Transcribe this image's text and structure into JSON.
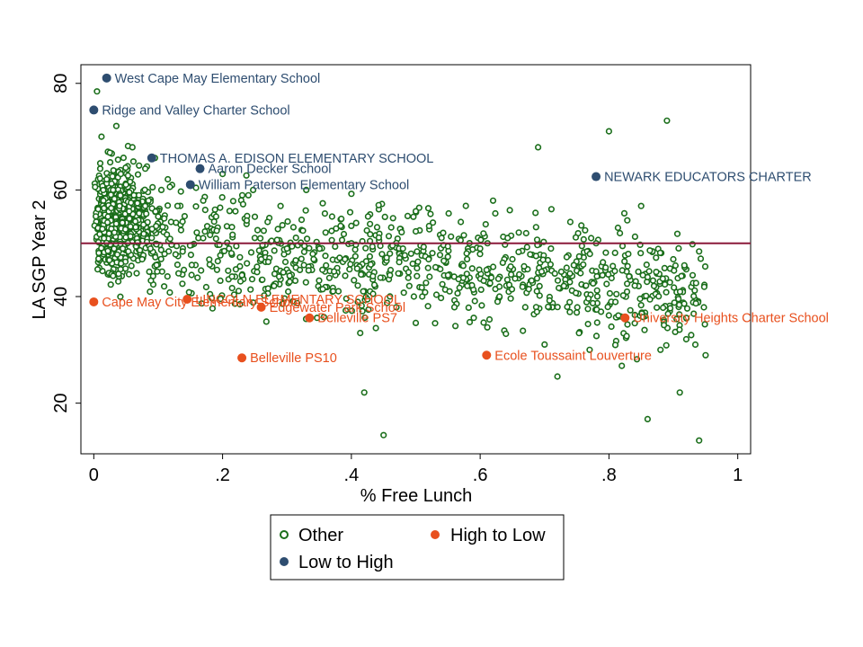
{
  "chart_data": {
    "type": "scatter",
    "title": "",
    "xlabel": "% Free Lunch",
    "ylabel": "LA SGP Year 2",
    "xlim": [
      -0.02,
      1.02
    ],
    "ylim": [
      10.5,
      83.5
    ],
    "x_ticks": [
      0,
      0.2,
      0.4,
      0.6,
      0.8,
      1
    ],
    "x_tick_labels": [
      "0",
      ".2",
      ".4",
      ".6",
      ".8",
      "1"
    ],
    "y_ticks": [
      20,
      40,
      60,
      80
    ],
    "y_tick_labels": [
      "20",
      "40",
      "60",
      "80"
    ],
    "reference_line": {
      "y": 50,
      "color": "#8b1a3a"
    },
    "grid": false,
    "legend_position": "bottom",
    "colors": {
      "other": "#1a6e1a",
      "low_to_high": "#2e4d70",
      "high_to_low": "#e8501e"
    },
    "other_sample": {
      "note_free": true,
      "x": [
        0.005,
        0.01,
        0.012,
        0.015,
        0.02,
        0.022,
        0.025,
        0.03,
        0.032,
        0.035,
        0.04,
        0.042,
        0.045,
        0.05,
        0.055,
        0.06,
        0.065,
        0.07,
        0.075,
        0.08,
        0.085,
        0.09,
        0.095,
        0.1,
        0.105,
        0.11,
        0.115,
        0.12,
        0.13,
        0.14,
        0.15,
        0.16,
        0.17,
        0.18,
        0.19,
        0.2,
        0.21,
        0.22,
        0.23,
        0.24,
        0.25,
        0.26,
        0.27,
        0.28,
        0.29,
        0.3,
        0.31,
        0.32,
        0.33,
        0.34,
        0.35,
        0.36,
        0.37,
        0.38,
        0.39,
        0.4,
        0.41,
        0.42,
        0.43,
        0.44,
        0.45,
        0.46,
        0.47,
        0.48,
        0.49,
        0.5,
        0.51,
        0.52,
        0.53,
        0.54,
        0.55,
        0.56,
        0.57,
        0.58,
        0.59,
        0.6,
        0.61,
        0.62,
        0.63,
        0.64,
        0.65,
        0.66,
        0.67,
        0.68,
        0.69,
        0.7,
        0.71,
        0.72,
        0.73,
        0.74,
        0.75,
        0.76,
        0.77,
        0.78,
        0.79,
        0.8,
        0.81,
        0.82,
        0.83,
        0.84,
        0.85,
        0.86,
        0.87,
        0.88,
        0.89,
        0.9,
        0.91,
        0.92,
        0.93,
        0.94,
        0.95
      ],
      "y": [
        78.5,
        65,
        70,
        58,
        62,
        55,
        67,
        60,
        52,
        72,
        57,
        63,
        49,
        61,
        56,
        68,
        53,
        59,
        47,
        64,
        58,
        51,
        66,
        55,
        60,
        48,
        62,
        54,
        57,
        45,
        61,
        52,
        58,
        46,
        55,
        63,
        49,
        56,
        44,
        59,
        51,
        47,
        54,
        42,
        57,
        49,
        53,
        45,
        60,
        48,
        43,
        52,
        55,
        41,
        47,
        50,
        39,
        22,
        46,
        53,
        14,
        44,
        38,
        49,
        42,
        56,
        40,
        47,
        35,
        51,
        44,
        38,
        54,
        42,
        36,
        49,
        45,
        58,
        40,
        33,
        47,
        52,
        38,
        43,
        68,
        31,
        49,
        25,
        42,
        54,
        37,
        46,
        30,
        50,
        44,
        71,
        39,
        27,
        48,
        35,
        57,
        17,
        42,
        30,
        73,
        47,
        22,
        36,
        44,
        13,
        29
      ]
    },
    "series": [
      {
        "name": "Other",
        "marker": "hollow-circle",
        "points": "generated-cloud"
      },
      {
        "name": "Low to High",
        "marker": "filled-circle",
        "points": [
          {
            "x": 0.02,
            "y": 81,
            "label": "West Cape May Elementary School"
          },
          {
            "x": 0.0,
            "y": 75,
            "label": "Ridge and Valley Charter School"
          },
          {
            "x": 0.09,
            "y": 66,
            "label": "THOMAS A. EDISON ELEMENTARY SCHOOL"
          },
          {
            "x": 0.165,
            "y": 64,
            "label": "Aaron Decker School"
          },
          {
            "x": 0.15,
            "y": 61,
            "label": "William Paterson Elementary School"
          },
          {
            "x": 0.78,
            "y": 62.5,
            "label": "NEWARK EDUCATORS CHARTER"
          }
        ]
      },
      {
        "name": "High to Low",
        "marker": "filled-circle",
        "points": [
          {
            "x": 0.0,
            "y": 39,
            "label": "Cape May City Elementary School"
          },
          {
            "x": 0.145,
            "y": 39.5,
            "label": "LINCOLN ELEMENTARY SCHOOL"
          },
          {
            "x": 0.26,
            "y": 38,
            "label": "Edgewater Park School"
          },
          {
            "x": 0.335,
            "y": 36,
            "label": "Belleville PS7"
          },
          {
            "x": 0.23,
            "y": 28.5,
            "label": "Belleville PS10"
          },
          {
            "x": 0.61,
            "y": 29,
            "label": "Ecole Toussaint Louverture"
          },
          {
            "x": 0.825,
            "y": 36,
            "label": "University Heights Charter School"
          }
        ]
      }
    ],
    "legend": {
      "other": "Other",
      "low_to_high": "Low to High",
      "high_to_low": "High to Low"
    }
  }
}
